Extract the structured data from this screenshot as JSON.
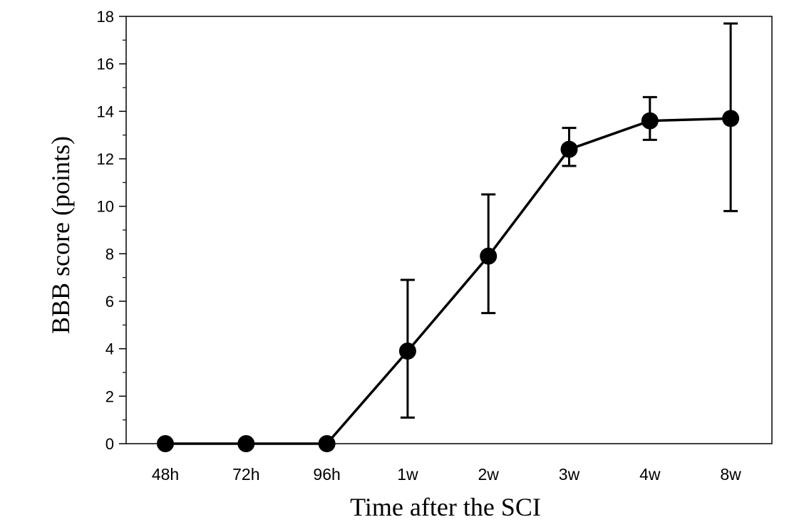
{
  "chart_data": {
    "type": "line",
    "title": "",
    "xlabel": "Time after the SCI",
    "ylabel": "BBB score (points)",
    "categories": [
      "48h",
      "72h",
      "96h",
      "1w",
      "2w",
      "3w",
      "4w",
      "8w"
    ],
    "ylim": [
      0,
      18
    ],
    "yticks": [
      0,
      2,
      4,
      6,
      8,
      10,
      12,
      14,
      16,
      18
    ],
    "grid": false,
    "legend": "none",
    "series": [
      {
        "values": [
          0,
          0,
          0,
          3.9,
          7.9,
          12.4,
          13.6,
          13.7
        ],
        "error_low": [
          0,
          0,
          0,
          1.1,
          5.5,
          11.7,
          12.8,
          9.8
        ],
        "error_high": [
          0,
          0,
          0,
          6.9,
          10.5,
          13.3,
          14.6,
          17.7
        ],
        "color": "#000000"
      }
    ]
  }
}
